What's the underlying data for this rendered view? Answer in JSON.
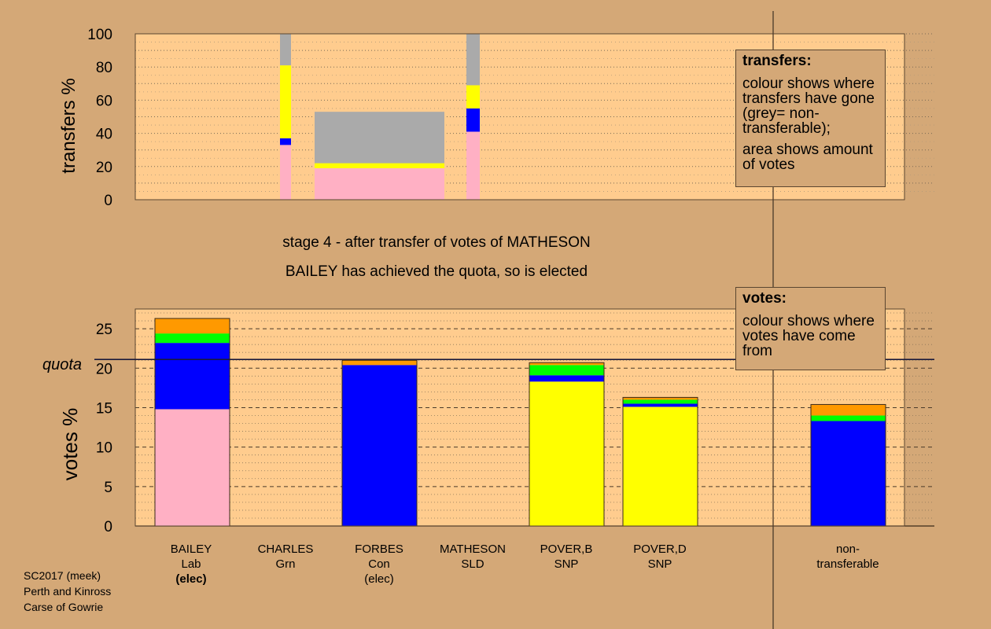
{
  "colors": {
    "background": "#D4A877",
    "plot_bg": "#FFCC8E",
    "Lab": "#FFB0C4",
    "Con": "#0000FF",
    "SNP": "#FFFF00",
    "Grn": "#00FF00",
    "SLD": "#FF9900",
    "nontransferable": "#AAAAAA"
  },
  "text": {
    "stage_line1": "stage 4 - after transfer of votes of MATHESON",
    "stage_line2": "BAILEY has achieved the quota, so is elected",
    "quota_label": "quota",
    "transfers_legend_title": "transfers:",
    "transfers_legend_p1": "colour shows where transfers have gone (grey= non-transferable);",
    "transfers_legend_p2": "area shows amount of votes",
    "votes_legend_title": "votes:",
    "votes_legend_p1": "colour shows where votes have come from",
    "footer": [
      "SC2017 (meek)",
      "Perth and Kinross",
      "Carse of Gowrie"
    ]
  },
  "candidates": [
    {
      "name": "BAILEY",
      "party": "Lab",
      "status": "(elec)",
      "status_bold": true
    },
    {
      "name": "CHARLES",
      "party": "Grn",
      "status": ""
    },
    {
      "name": "FORBES",
      "party": "Con",
      "status": "(elec)",
      "status_bold": false
    },
    {
      "name": "MATHESON",
      "party": "SLD",
      "status": ""
    },
    {
      "name": "POVER,B",
      "party": "SNP",
      "status": ""
    },
    {
      "name": "POVER,D",
      "party": "SNP",
      "status": ""
    },
    {
      "name": "non-",
      "party": "transferable",
      "status": ""
    }
  ],
  "chart_data": [
    {
      "type": "bar",
      "ylabel": "transfers %",
      "ylim": [
        0,
        100
      ],
      "yticks": [
        0,
        20,
        40,
        60,
        80,
        100
      ],
      "grid": "dotted",
      "bars": [
        {
          "from": "CHARLES",
          "votes_share": "narrow",
          "segments": [
            {
              "to": "Lab",
              "value": 33
            },
            {
              "to": "Con",
              "value": 4
            },
            {
              "to": "SNP",
              "value": 44
            },
            {
              "to": "nontransferable",
              "value": 19
            }
          ]
        },
        {
          "from": "FORBES",
          "votes_share": "wide",
          "total": 53,
          "segments": [
            {
              "to": "Lab",
              "value": 19
            },
            {
              "to": "SNP",
              "value": 3
            },
            {
              "to": "nontransferable",
              "value": 31
            }
          ]
        },
        {
          "from": "MATHESON",
          "votes_share": "narrow",
          "segments": [
            {
              "to": "Lab",
              "value": 41
            },
            {
              "to": "Con",
              "value": 14
            },
            {
              "to": "SNP",
              "value": 14
            },
            {
              "to": "nontransferable",
              "value": 31
            }
          ]
        }
      ]
    },
    {
      "type": "bar",
      "ylabel": "votes %",
      "ylim": [
        0,
        27.5
      ],
      "yticks": [
        0,
        5,
        10,
        15,
        20,
        25
      ],
      "quota": 21.1,
      "grid": "dashed",
      "bars": [
        {
          "candidate": "BAILEY",
          "segments": [
            {
              "from": "Lab",
              "value": 14.8
            },
            {
              "from": "Con",
              "value": 8.4
            },
            {
              "from": "Grn",
              "value": 1.2
            },
            {
              "from": "SLD",
              "value": 1.9
            }
          ]
        },
        {
          "candidate": "CHARLES",
          "segments": []
        },
        {
          "candidate": "FORBES",
          "segments": [
            {
              "from": "Con",
              "value": 20.4
            },
            {
              "from": "SLD",
              "value": 0.6
            }
          ]
        },
        {
          "candidate": "MATHESON",
          "segments": []
        },
        {
          "candidate": "POVER,B",
          "segments": [
            {
              "from": "SNP",
              "value": 18.3
            },
            {
              "from": "Con",
              "value": 0.8
            },
            {
              "from": "Grn",
              "value": 1.3
            },
            {
              "from": "SLD",
              "value": 0.3
            }
          ]
        },
        {
          "candidate": "POVER,D",
          "segments": [
            {
              "from": "SNP",
              "value": 15.1
            },
            {
              "from": "Con",
              "value": 0.4
            },
            {
              "from": "Grn",
              "value": 0.5
            },
            {
              "from": "SLD",
              "value": 0.3
            }
          ]
        },
        {
          "candidate": "non-transferable",
          "segments": [
            {
              "from": "Con",
              "value": 13.3
            },
            {
              "from": "Grn",
              "value": 0.7
            },
            {
              "from": "SLD",
              "value": 1.4
            }
          ]
        }
      ]
    }
  ]
}
